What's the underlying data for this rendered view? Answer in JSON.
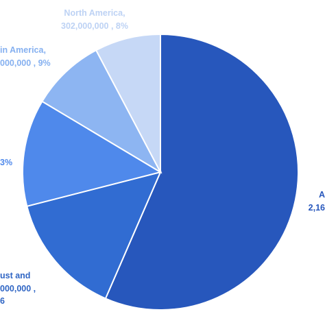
{
  "chart_data": {
    "type": "pie",
    "slices": [
      {
        "name": "A",
        "label_line1": "A",
        "label_line2": "2,16",
        "value": 0.585,
        "color": "#2757BC"
      },
      {
        "name": "ust and",
        "label_line1": "ust and",
        "label_line2": "000,000 ,",
        "label_line3": "6",
        "value": 0.15,
        "color": "#316CD2"
      },
      {
        "name": "",
        "label_line1": "3%",
        "value": 0.13,
        "color": "#4F89EB"
      },
      {
        "name": "in America",
        "label_line1": "in America,",
        "label_line2": "000,000 , 9%",
        "value": 0.09,
        "color": "#8DB5F2"
      },
      {
        "name": "North America",
        "label_line1": "North America,",
        "label_line2": "302,000,000 , 8%",
        "value": 0.08,
        "color": "#C6D8F6"
      }
    ]
  }
}
